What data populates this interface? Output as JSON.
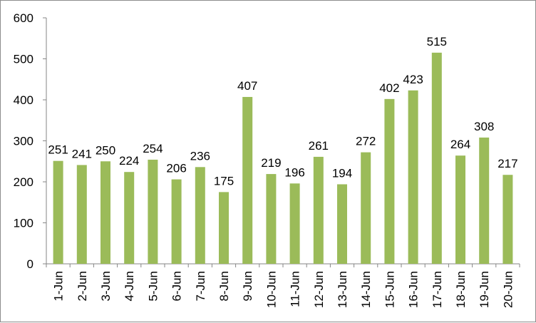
{
  "chart_data": {
    "type": "bar",
    "title": "",
    "xlabel": "",
    "ylabel": "",
    "ylim": [
      0,
      600
    ],
    "yticks": [
      0,
      100,
      200,
      300,
      400,
      500,
      600
    ],
    "grid": false,
    "legend": "none",
    "bar_color": "#9BBB59",
    "categories": [
      "1-Jun",
      "2-Jun",
      "3-Jun",
      "4-Jun",
      "5-Jun",
      "6-Jun",
      "7-Jun",
      "8-Jun",
      "9-Jun",
      "10-Jun",
      "11-Jun",
      "12-Jun",
      "13-Jun",
      "14-Jun",
      "15-Jun",
      "16-Jun",
      "17-Jun",
      "18-Jun",
      "19-Jun",
      "20-Jun"
    ],
    "values": [
      251,
      241,
      250,
      224,
      254,
      206,
      236,
      175,
      407,
      219,
      196,
      261,
      194,
      272,
      402,
      423,
      515,
      264,
      308,
      217
    ]
  }
}
